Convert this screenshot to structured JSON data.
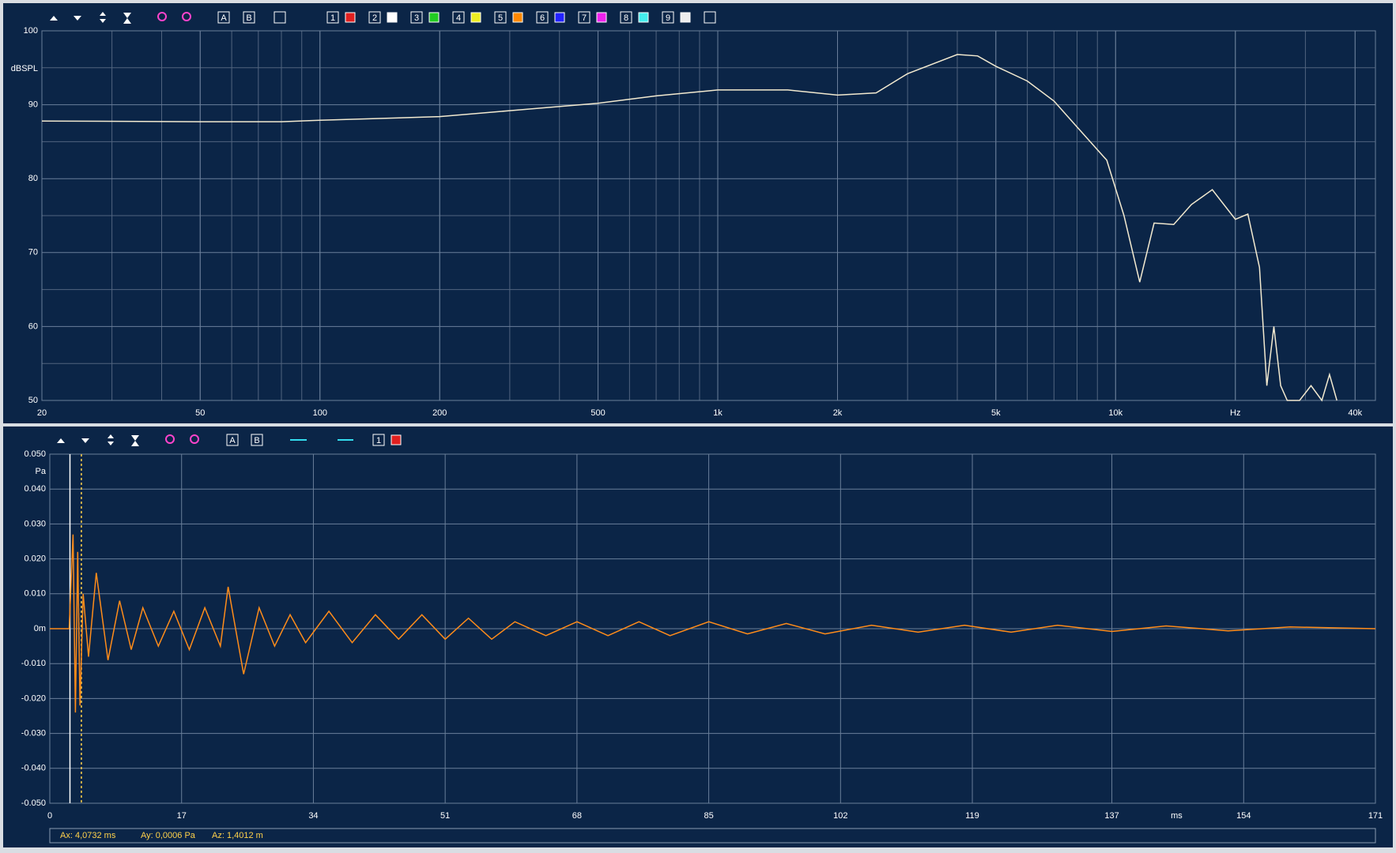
{
  "chart_data": [
    {
      "type": "line",
      "xscale": "log",
      "ylabel": "dBSPL",
      "grid": true,
      "x": [
        20,
        50,
        80,
        100,
        200,
        300,
        500,
        700,
        1000,
        1500,
        2000,
        2500,
        3000,
        4000,
        4500,
        5000,
        6000,
        7000,
        8000,
        9500,
        10500,
        11500,
        12500,
        14000,
        15500,
        17500,
        20000,
        21500,
        23000,
        24000,
        25000,
        26000,
        27000,
        29000,
        31000,
        33000,
        34500,
        36000
      ],
      "series": [
        {
          "color": "#f3ead0",
          "values": [
            87.8,
            87.7,
            87.7,
            87.9,
            88.4,
            89.2,
            90.2,
            91.2,
            92.0,
            92.0,
            91.3,
            91.6,
            94.2,
            96.8,
            96.6,
            95.2,
            93.2,
            90.5,
            87.0,
            82.5,
            75,
            66,
            74,
            73.8,
            76.5,
            78.5,
            74.5,
            75.2,
            68,
            52,
            60,
            52,
            50,
            50,
            52,
            50,
            53.5,
            50
          ]
        }
      ],
      "xlim": [
        20,
        45000
      ],
      "ylim": [
        50,
        100
      ],
      "xticks": [
        20,
        50,
        100,
        200,
        500,
        {
          "value": 1000,
          "label": "1k"
        },
        {
          "value": 2000,
          "label": "2k"
        },
        {
          "value": 5000,
          "label": "5k"
        },
        {
          "value": 10000,
          "label": "10k"
        },
        {
          "value": 20000,
          "label": "Hz"
        },
        {
          "value": 40000,
          "label": "40k"
        }
      ],
      "yticks": [
        50,
        60,
        70,
        80,
        90,
        100
      ]
    },
    {
      "type": "line",
      "ylabel": "Pa",
      "xlabel": "ms",
      "grid": true,
      "x": [
        0,
        2.5,
        3.0,
        3.3,
        3.6,
        3.9,
        4.3,
        5,
        6,
        7.5,
        9,
        10.5,
        12,
        14,
        16,
        18,
        20,
        22,
        23,
        25,
        27,
        29,
        31,
        33,
        36,
        39,
        42,
        45,
        48,
        51,
        54,
        57,
        60,
        64,
        68,
        72,
        76,
        80,
        85,
        90,
        95,
        100,
        106,
        112,
        118,
        124,
        130,
        137,
        144,
        152,
        160,
        171
      ],
      "series": [
        {
          "color": "#ff8c1a",
          "values": [
            0,
            0,
            0.027,
            -0.024,
            0.022,
            -0.022,
            0.01,
            -0.008,
            0.016,
            -0.009,
            0.008,
            -0.006,
            0.006,
            -0.005,
            0.005,
            -0.006,
            0.006,
            -0.005,
            0.012,
            -0.013,
            0.006,
            -0.005,
            0.004,
            -0.004,
            0.005,
            -0.004,
            0.004,
            -0.003,
            0.004,
            -0.003,
            0.003,
            -0.003,
            0.002,
            -0.002,
            0.002,
            -0.002,
            0.002,
            -0.002,
            0.002,
            -0.0015,
            0.0015,
            -0.0015,
            0.001,
            -0.001,
            0.001,
            -0.001,
            0.001,
            -0.0008,
            0.0008,
            -0.0006,
            0.0005,
            0
          ]
        }
      ],
      "cursors": [
        {
          "x": 2.6,
          "color": "#ffffff"
        },
        {
          "x": 4.0732,
          "color": "#ffd24a",
          "dashed": true
        }
      ],
      "xlim": [
        0,
        171
      ],
      "ylim": [
        -0.05,
        0.05
      ],
      "xticks": [
        0,
        17,
        34,
        51,
        68,
        85,
        102,
        119,
        137,
        154,
        171
      ],
      "yticks": [
        {
          "value": -0.05,
          "label": "-0.050"
        },
        {
          "value": -0.04,
          "label": "-0.040"
        },
        {
          "value": -0.03,
          "label": "-0.030"
        },
        {
          "value": -0.02,
          "label": "-0.020"
        },
        {
          "value": -0.01,
          "label": "-0.010"
        },
        {
          "value": 0,
          "label": "0m"
        },
        {
          "value": 0.01,
          "label": "0.010"
        },
        {
          "value": 0.02,
          "label": "0.020"
        },
        {
          "value": 0.03,
          "label": "0.030"
        },
        {
          "value": 0.04,
          "label": "0.040"
        },
        {
          "value": 0.05,
          "label": "0.050"
        }
      ]
    }
  ],
  "toolbars": [
    [
      "A",
      "B",
      "1",
      "2",
      "3",
      "4",
      "5",
      "6",
      "7",
      "8",
      "9"
    ],
    [
      "A",
      "B",
      "1"
    ]
  ],
  "status": [
    "Ax: 4,0732 ms",
    "Ay: 0,0006 Pa",
    "Az: 1,4012 m"
  ]
}
